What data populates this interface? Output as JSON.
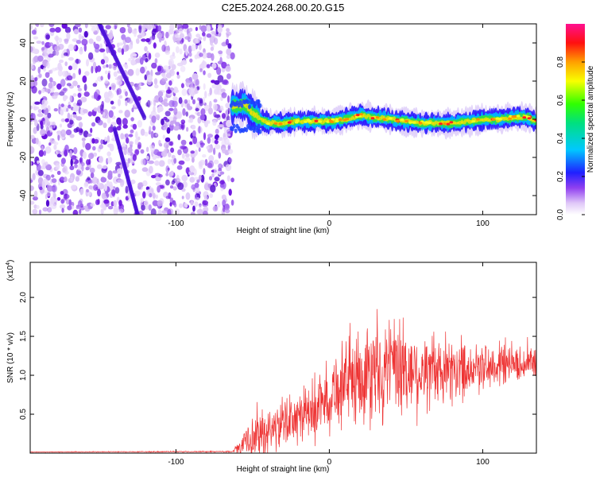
{
  "chart_data": [
    {
      "type": "heatmap",
      "title": "C2E5.2024.268.00.20.G15",
      "xlabel": "Height of straight line (km)",
      "ylabel": "Frequency (Hz)",
      "xlim": [
        -195,
        135
      ],
      "ylim": [
        -50,
        50
      ],
      "xticks": [
        -100,
        0,
        100
      ],
      "yticks": [
        -40,
        -20,
        0,
        20,
        40
      ],
      "noise_region_x": [
        -195,
        -63
      ],
      "signal_ridge": {
        "x": [
          -63,
          -55,
          -50,
          -45,
          -40,
          -30,
          -20,
          -10,
          0,
          10,
          20,
          30,
          40,
          50,
          60,
          70,
          80,
          90,
          100,
          110,
          120,
          130,
          135
        ],
        "freq_hz": [
          7,
          8,
          3,
          0,
          -2,
          -2,
          -1,
          -1,
          -1,
          0,
          2,
          1,
          0,
          -1,
          -2,
          -2,
          -2,
          -1,
          0,
          0,
          1,
          1,
          -1
        ]
      },
      "colorbar": {
        "label": "Normalized spectral amplitude",
        "range": [
          0,
          1
        ],
        "ticks": [
          0.0,
          0.2,
          0.4,
          0.6,
          0.8
        ],
        "tick_labels": [
          "0.0",
          "0.2",
          "0.4",
          "0.6",
          "0.8"
        ]
      }
    },
    {
      "type": "line",
      "xlabel": "Height of straight line (km)",
      "ylabel": "SNR (10 * v/v)",
      "y_scale_label": "(x10",
      "y_scale_exp": "4",
      "xlim": [
        -195,
        135
      ],
      "ylim": [
        0,
        24500
      ],
      "xticks": [
        -100,
        0,
        100
      ],
      "yticks": [
        5000,
        10000,
        15000,
        20000
      ],
      "ytick_labels": [
        "0.5",
        "1.0",
        "1.5",
        "2.0"
      ],
      "series": [
        {
          "name": "SNR",
          "color": "#ee3333",
          "envelope": {
            "x": [
              -195,
              -63,
              -50,
              -45,
              -35,
              -20,
              -10,
              0,
              10,
              20,
              30,
              45,
              60,
              75,
              90,
              100,
              110,
              120,
              130,
              135
            ],
            "base": [
              150,
              200,
              2000,
              2500,
              3500,
              4500,
              5500,
              7500,
              9000,
              10000,
              10500,
              10500,
              10500,
              10500,
              11000,
              11000,
              11500,
              11500,
              11500,
              11500
            ],
            "amp": [
              60,
              100,
              3500,
              4500,
              4000,
              4500,
              5000,
              6000,
              7000,
              8000,
              8500,
              9000,
              7000,
              6000,
              5000,
              4500,
              4000,
              3500,
              3000,
              3000
            ]
          }
        }
      ]
    }
  ]
}
